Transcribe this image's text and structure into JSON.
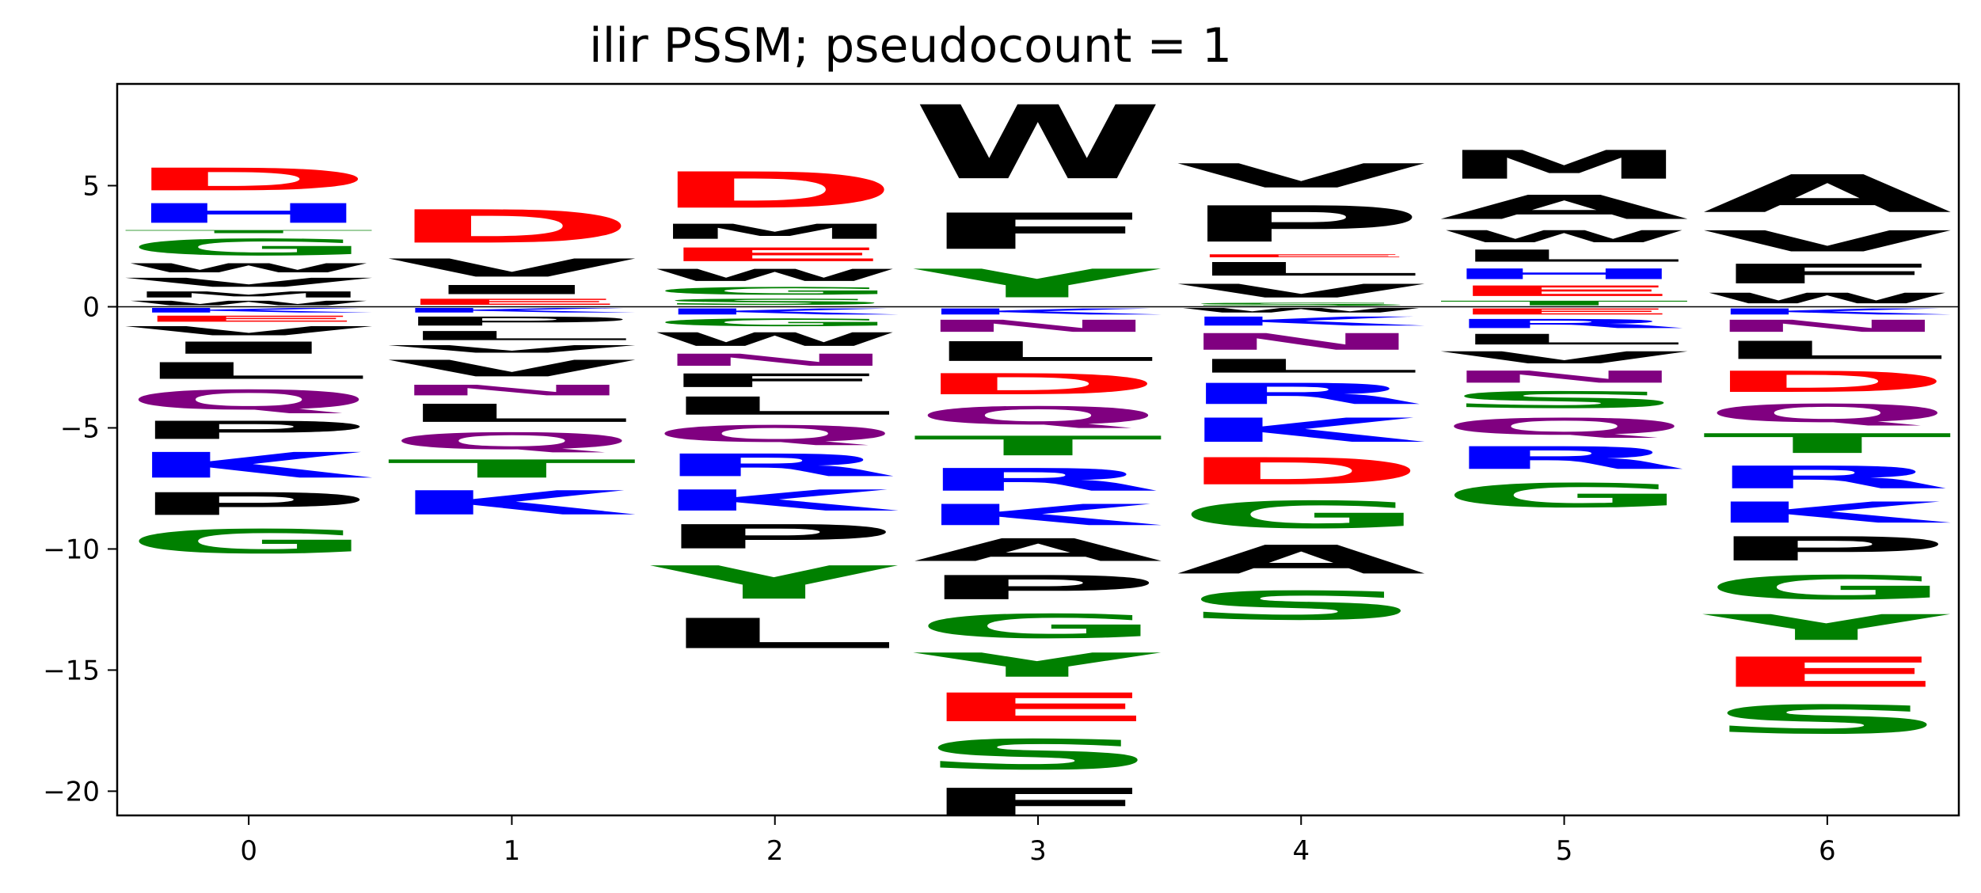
{
  "chart_data": {
    "type": "logo",
    "title": "ilir PSSM; pseudocount = 1",
    "xlabel": "",
    "ylabel": "",
    "xlim": [
      -0.5,
      6.5
    ],
    "ylim": [
      -21,
      9.2
    ],
    "xticks": [
      0,
      1,
      2,
      3,
      4,
      5,
      6
    ],
    "yticks": [
      -20,
      -15,
      -10,
      -5,
      0,
      5
    ],
    "ytick_labels": [
      "−20",
      "−15",
      "−10",
      "−5",
      "0",
      "5"
    ],
    "grid": false,
    "zero_line": true,
    "color_scheme": {
      "D": "#ff0000",
      "E": "#ff0000",
      "H": "#0000ff",
      "K": "#0000ff",
      "R": "#0000ff",
      "G": "#008000",
      "S": "#008000",
      "T": "#008000",
      "Y": "#008000",
      "C": "#008000",
      "N": "#800080",
      "Q": "#800080",
      "A": "#000000",
      "V": "#000000",
      "L": "#000000",
      "I": "#000000",
      "P": "#000000",
      "W": "#000000",
      "F": "#000000",
      "M": "#000000"
    },
    "positions": [
      {
        "position": 0,
        "positive": [
          {
            "letter": "W",
            "value": 0.3
          },
          {
            "letter": "M",
            "value": 0.4
          },
          {
            "letter": "V",
            "value": 0.6
          },
          {
            "letter": "W",
            "value": 0.6
          },
          {
            "letter": "G",
            "value": 1.1
          },
          {
            "letter": "T",
            "value": 0.2
          },
          {
            "letter": "H",
            "value": 1.3
          },
          {
            "letter": "D",
            "value": 1.5
          }
        ],
        "negative": [
          {
            "letter": "K",
            "value": 0.3
          },
          {
            "letter": "E",
            "value": 0.4
          },
          {
            "letter": "V",
            "value": 0.6
          },
          {
            "letter": "I",
            "value": 0.8
          },
          {
            "letter": "L",
            "value": 1.1
          },
          {
            "letter": "Q",
            "value": 1.3
          },
          {
            "letter": "P",
            "value": 1.2
          },
          {
            "letter": "K",
            "value": 1.7
          },
          {
            "letter": "P",
            "value": 1.5
          },
          {
            "letter": "G",
            "value": 1.6
          }
        ]
      },
      {
        "position": 1,
        "positive": [
          {
            "letter": "E",
            "value": 0.4
          },
          {
            "letter": "I",
            "value": 0.6
          },
          {
            "letter": "V",
            "value": 1.2
          },
          {
            "letter": "D",
            "value": 2.2
          }
        ],
        "negative": [
          {
            "letter": "K",
            "value": 0.3
          },
          {
            "letter": "P",
            "value": 0.6
          },
          {
            "letter": "L",
            "value": 0.6
          },
          {
            "letter": "V",
            "value": 0.5
          },
          {
            "letter": "V",
            "value": 1.1
          },
          {
            "letter": "N",
            "value": 0.7
          },
          {
            "letter": "L",
            "value": 1.2
          },
          {
            "letter": "Q",
            "value": 1.1
          },
          {
            "letter": "T",
            "value": 1.2
          },
          {
            "letter": "K",
            "value": 1.6
          }
        ]
      },
      {
        "position": 2,
        "positive": [
          {
            "letter": "S",
            "value": 0.4
          },
          {
            "letter": "G",
            "value": 0.5
          },
          {
            "letter": "W",
            "value": 0.8
          },
          {
            "letter": "E",
            "value": 0.9
          },
          {
            "letter": "M",
            "value": 1.0
          },
          {
            "letter": "D",
            "value": 2.4
          }
        ],
        "negative": [
          {
            "letter": "K",
            "value": 0.4
          },
          {
            "letter": "G",
            "value": 0.5
          },
          {
            "letter": "W",
            "value": 0.9
          },
          {
            "letter": "N",
            "value": 0.8
          },
          {
            "letter": "F",
            "value": 0.9
          },
          {
            "letter": "L",
            "value": 1.2
          },
          {
            "letter": "Q",
            "value": 1.1
          },
          {
            "letter": "R",
            "value": 1.5
          },
          {
            "letter": "K",
            "value": 1.4
          },
          {
            "letter": "P",
            "value": 1.6
          },
          {
            "letter": "Y",
            "value": 2.2
          },
          {
            "letter": "L",
            "value": 2.0
          }
        ]
      },
      {
        "position": 3,
        "positive": [
          {
            "letter": "Y",
            "value": 1.9
          },
          {
            "letter": "F",
            "value": 2.4
          },
          {
            "letter": "W",
            "value": 4.9
          }
        ],
        "negative": [
          {
            "letter": "K",
            "value": 0.4
          },
          {
            "letter": "N",
            "value": 0.8
          },
          {
            "letter": "L",
            "value": 1.3
          },
          {
            "letter": "D",
            "value": 1.4
          },
          {
            "letter": "Q",
            "value": 1.2
          },
          {
            "letter": "T",
            "value": 1.3
          },
          {
            "letter": "R",
            "value": 1.5
          },
          {
            "letter": "K",
            "value": 1.4
          },
          {
            "letter": "A",
            "value": 1.5
          },
          {
            "letter": "P",
            "value": 1.6
          },
          {
            "letter": "G",
            "value": 1.6
          },
          {
            "letter": "Y",
            "value": 1.6
          },
          {
            "letter": "E",
            "value": 1.9
          },
          {
            "letter": "S",
            "value": 2.0
          },
          {
            "letter": "F",
            "value": 2.1
          }
        ]
      },
      {
        "position": 4,
        "positive": [
          {
            "letter": "S",
            "value": 0.2
          },
          {
            "letter": "V",
            "value": 0.9
          },
          {
            "letter": "L",
            "value": 0.9
          },
          {
            "letter": "E",
            "value": 0.2
          },
          {
            "letter": "P",
            "value": 2.4
          },
          {
            "letter": "V",
            "value": 1.6
          }
        ],
        "negative": [
          {
            "letter": "W",
            "value": 0.3
          },
          {
            "letter": "K",
            "value": 0.6
          },
          {
            "letter": "N",
            "value": 1.1
          },
          {
            "letter": "L",
            "value": 0.9
          },
          {
            "letter": "R",
            "value": 1.4
          },
          {
            "letter": "K",
            "value": 1.6
          },
          {
            "letter": "D",
            "value": 1.8
          },
          {
            "letter": "G",
            "value": 1.8
          },
          {
            "letter": "A",
            "value": 1.9
          },
          {
            "letter": "S",
            "value": 1.9
          }
        ]
      },
      {
        "position": 5,
        "positive": [
          {
            "letter": "T",
            "value": 0.3
          },
          {
            "letter": "E",
            "value": 0.7
          },
          {
            "letter": "H",
            "value": 0.7
          },
          {
            "letter": "L",
            "value": 0.8
          },
          {
            "letter": "W",
            "value": 0.8
          },
          {
            "letter": "A",
            "value": 1.6
          },
          {
            "letter": "M",
            "value": 1.9
          }
        ],
        "negative": [
          {
            "letter": "E",
            "value": 0.4
          },
          {
            "letter": "R",
            "value": 0.6
          },
          {
            "letter": "L",
            "value": 0.7
          },
          {
            "letter": "V",
            "value": 0.8
          },
          {
            "letter": "N",
            "value": 0.8
          },
          {
            "letter": "S",
            "value": 1.1
          },
          {
            "letter": "Q",
            "value": 1.1
          },
          {
            "letter": "R",
            "value": 1.5
          },
          {
            "letter": "G",
            "value": 1.6
          }
        ]
      },
      {
        "position": 6,
        "positive": [
          {
            "letter": "W",
            "value": 0.7
          },
          {
            "letter": "F",
            "value": 1.3
          },
          {
            "letter": "V",
            "value": 1.4
          },
          {
            "letter": "A",
            "value": 2.5
          }
        ],
        "negative": [
          {
            "letter": "K",
            "value": 0.4
          },
          {
            "letter": "N",
            "value": 0.8
          },
          {
            "letter": "L",
            "value": 1.2
          },
          {
            "letter": "D",
            "value": 1.4
          },
          {
            "letter": "Q",
            "value": 1.2
          },
          {
            "letter": "T",
            "value": 1.3
          },
          {
            "letter": "R",
            "value": 1.5
          },
          {
            "letter": "K",
            "value": 1.4
          },
          {
            "letter": "P",
            "value": 1.6
          },
          {
            "letter": "G",
            "value": 1.6
          },
          {
            "letter": "Y",
            "value": 1.7
          },
          {
            "letter": "E",
            "value": 2.0
          },
          {
            "letter": "S",
            "value": 1.9
          }
        ]
      }
    ]
  }
}
